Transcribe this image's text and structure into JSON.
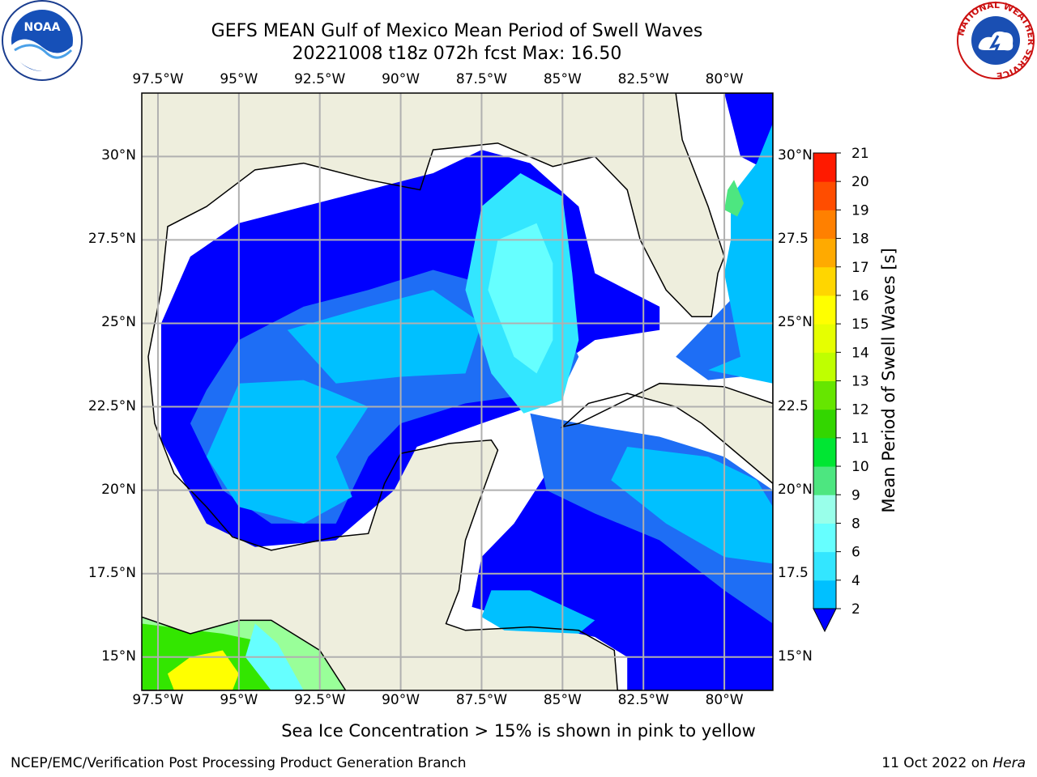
{
  "title_line1": "GEFS MEAN Gulf of Mexico Mean Period of Swell Waves",
  "title_line2": "20221008 t18z 072h fcst   Max: 16.50",
  "lon_labels": [
    "97.5°W",
    "95°W",
    "92.5°W",
    "90°W",
    "87.5°W",
    "85°W",
    "82.5°W",
    "80°W"
  ],
  "lat_labels_left": [
    "30°N",
    "27.5°N",
    "25°N",
    "22.5°N",
    "20°N",
    "17.5°N",
    "15°N"
  ],
  "lat_labels_right": [
    "30°N",
    "27.5",
    "25°N",
    "22.5",
    "20°N",
    "17.5",
    "15°N"
  ],
  "colorbar": {
    "label": "Mean Period of Swell Waves [s]",
    "ticks": [
      "2",
      "4",
      "6",
      "8",
      "9",
      "10",
      "11",
      "12",
      "13",
      "14",
      "15",
      "16",
      "17",
      "18",
      "19",
      "20",
      "21"
    ],
    "colors": [
      "#1e6ef5",
      "#00c0ff",
      "#33e6ff",
      "#66ffff",
      "#99ffea",
      "#4de680",
      "#00e633",
      "#33d600",
      "#66e600",
      "#bfff00",
      "#e6ff00",
      "#ffff00",
      "#ffd600",
      "#ffaa00",
      "#ff8000",
      "#ff4d00",
      "#ff1a00",
      "#ff0000"
    ],
    "extend_color": "#0000ff"
  },
  "map": {
    "lon_range": [
      -98,
      -78.5
    ],
    "lat_range": [
      14,
      31.9
    ],
    "land_color": "#eeeedd",
    "ocean_colors": {
      "dark": "#0000ff",
      "mid": "#1e6ef5",
      "light": "#00c0ff",
      "cyan": "#33e6ff",
      "pale": "#66ffff",
      "green": "#4de680"
    }
  },
  "subtitle": "Sea Ice Concentration > 15% is shown in pink to yellow",
  "footer_left": "NCEP/EMC/Verification Post Processing Product Generation Branch",
  "footer_right_date": "11 Oct 2022 on ",
  "footer_right_host": "Hera",
  "logos": {
    "noaa_text": "NOAA",
    "nws_ring_text": "NATIONAL WEATHER SERVICE"
  }
}
